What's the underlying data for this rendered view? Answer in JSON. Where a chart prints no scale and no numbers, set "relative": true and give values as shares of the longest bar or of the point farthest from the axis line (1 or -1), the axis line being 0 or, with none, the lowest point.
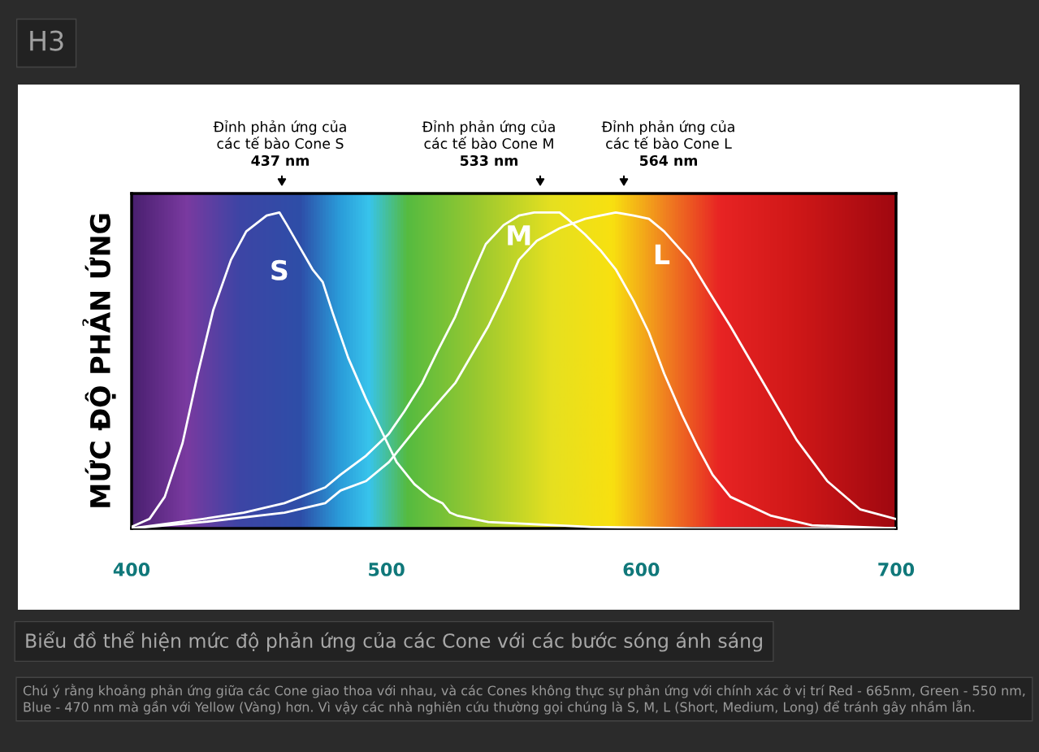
{
  "chart_data": {
    "type": "line",
    "relative": true,
    "legend": false,
    "grid": false,
    "marker": "none",
    "line_style": "solid",
    "ylabel": "MỨC ĐỘ PHẢN ỨNG",
    "title": "Biểu đồ thể hiện mức độ phản ứng của các Cone với các bước sóng ánh sáng",
    "xlim": [
      400,
      700
    ],
    "xticks": [
      400,
      500,
      600,
      700
    ],
    "annotations": [
      "H3",
      "Đỉnh phản ứng của\ncác tế bào Cone S\n437 nm",
      "Đỉnh phản ứng của\ncác tế bào Cone M\n533 nm",
      "Đỉnh phản ứng của\ncác tế bào Cone L\n564 nm",
      "Chú ý rằng khoảng phản ứng giữa các Cone giao thoa với nhau, và các Cones không thực sự phản ứng với chính xác ở vị trí Red - 665nm, Green - 550 nm, Blue - 470 nm mà gần với Yellow (Vàng) hơn. Vì vậy các nhà nghiên cứu thường gọi chúng là S, M, L (Short, Medium, Long) để tránh gây nhầm lẫn."
    ],
    "series": [
      {
        "name": "S",
        "color": "#ffffff",
        "x": [
          400,
          407,
          413,
          420,
          426,
          432,
          439,
          445,
          453,
          458,
          461,
          466,
          471,
          475,
          479,
          485,
          492,
          498,
          504,
          511,
          517,
          522,
          525,
          528,
          540,
          580,
          620,
          700
        ],
        "values": [
          0.005,
          0.03,
          0.1,
          0.27,
          0.49,
          0.69,
          0.85,
          0.94,
          0.99,
          1.0,
          0.96,
          0.89,
          0.82,
          0.78,
          0.68,
          0.54,
          0.41,
          0.31,
          0.21,
          0.14,
          0.1,
          0.08,
          0.05,
          0.04,
          0.02,
          0.005,
          0,
          0
        ]
      },
      {
        "name": "M",
        "color": "#ffffff",
        "x": [
          400,
          428,
          444,
          460,
          476,
          482,
          492,
          501,
          507,
          514,
          520,
          527,
          533,
          539,
          546,
          552,
          558,
          568,
          571,
          578,
          584,
          590,
          597,
          603,
          609,
          616,
          622,
          628,
          635,
          651,
          667,
          700
        ],
        "values": [
          0,
          0.03,
          0.05,
          0.08,
          0.13,
          0.17,
          0.23,
          0.3,
          0.37,
          0.46,
          0.56,
          0.67,
          0.79,
          0.9,
          0.96,
          0.99,
          1.0,
          1.0,
          0.98,
          0.93,
          0.88,
          0.82,
          0.72,
          0.62,
          0.49,
          0.36,
          0.26,
          0.17,
          0.1,
          0.04,
          0.01,
          0
        ]
      },
      {
        "name": "L",
        "color": "#ffffff",
        "x": [
          400,
          428,
          460,
          476,
          482,
          492,
          501,
          514,
          527,
          540,
          546,
          552,
          559,
          568,
          578,
          584,
          590,
          597,
          603,
          609,
          619,
          625,
          635,
          648,
          661,
          673,
          686,
          700
        ],
        "values": [
          0,
          0.02,
          0.05,
          0.08,
          0.12,
          0.15,
          0.21,
          0.34,
          0.46,
          0.64,
          0.74,
          0.85,
          0.91,
          0.95,
          0.98,
          0.99,
          1.0,
          0.99,
          0.98,
          0.94,
          0.85,
          0.77,
          0.64,
          0.46,
          0.28,
          0.15,
          0.06,
          0.03
        ]
      }
    ]
  }
}
